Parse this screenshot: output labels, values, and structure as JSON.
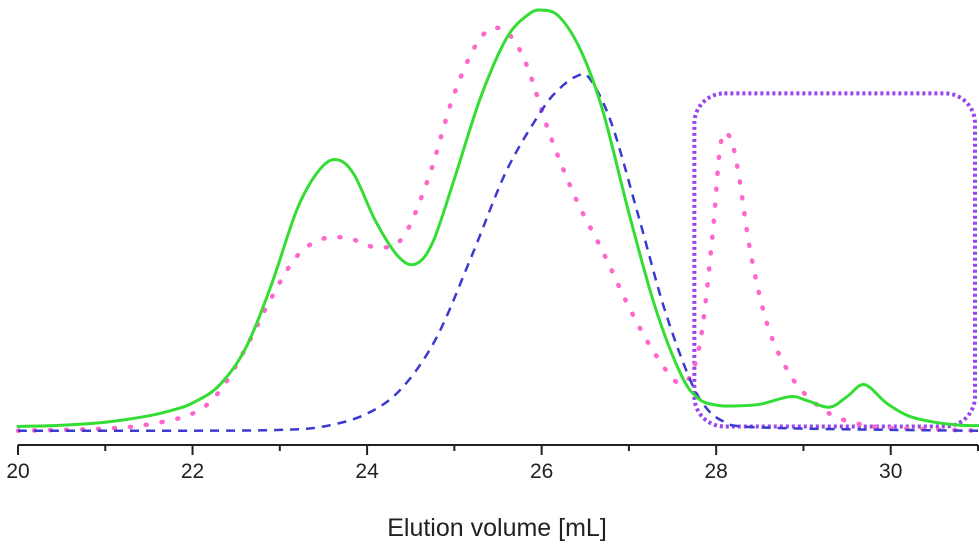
{
  "chart_data": {
    "type": "line",
    "title": "",
    "xlabel": "Elution volume [mL]",
    "ylabel": "",
    "xlim": [
      20,
      31
    ],
    "ylim": [
      0,
      1
    ],
    "x_ticks": [
      20,
      22,
      24,
      26,
      28,
      30
    ],
    "grid": false,
    "legend": "none",
    "series": [
      {
        "style": "solid",
        "color": "#33dd33",
        "x": [
          20,
          20.5,
          21,
          21.5,
          21.8,
          22,
          22.3,
          22.6,
          22.9,
          23.2,
          23.45,
          23.65,
          23.85,
          24.1,
          24.35,
          24.55,
          24.75,
          25,
          25.3,
          25.6,
          25.85,
          26,
          26.2,
          26.45,
          26.7,
          27,
          27.3,
          27.6,
          27.8,
          28.0,
          28.2,
          28.5,
          28.85,
          29.05,
          29.3,
          29.5,
          29.7,
          29.95,
          30.2,
          30.5,
          30.8,
          31
        ],
        "y": [
          0.02,
          0.023,
          0.03,
          0.045,
          0.06,
          0.075,
          0.115,
          0.2,
          0.35,
          0.53,
          0.62,
          0.645,
          0.61,
          0.5,
          0.42,
          0.4,
          0.45,
          0.6,
          0.79,
          0.93,
          0.985,
          0.995,
          0.98,
          0.9,
          0.76,
          0.52,
          0.3,
          0.14,
          0.085,
          0.07,
          0.068,
          0.072,
          0.09,
          0.08,
          0.065,
          0.09,
          0.118,
          0.075,
          0.045,
          0.03,
          0.023,
          0.022
        ]
      },
      {
        "style": "dashed",
        "color": "#3a3ad0",
        "x": [
          20,
          22,
          23,
          23.5,
          24,
          24.4,
          24.8,
          25.2,
          25.6,
          26,
          26.2,
          26.4,
          26.55,
          26.8,
          27.1,
          27.4,
          27.7,
          27.9,
          28.1,
          28.3,
          29,
          30,
          31
        ],
        "y": [
          0.01,
          0.01,
          0.012,
          0.02,
          0.05,
          0.11,
          0.23,
          0.42,
          0.62,
          0.76,
          0.81,
          0.84,
          0.835,
          0.73,
          0.52,
          0.3,
          0.13,
          0.06,
          0.03,
          0.02,
          0.015,
          0.012,
          0.01
        ]
      },
      {
        "style": "dotted",
        "color": "#ff66cc",
        "x": [
          20,
          21,
          21.5,
          22,
          22.3,
          22.6,
          22.9,
          23.2,
          23.5,
          23.8,
          24.1,
          24.4,
          24.7,
          25,
          25.3,
          25.55,
          25.8,
          26.1,
          26.4,
          26.7,
          27,
          27.3,
          27.6,
          27.8,
          27.95,
          28.05,
          28.15,
          28.25,
          28.4,
          28.6,
          28.85,
          29.1,
          29.4,
          29.8,
          30.2,
          31
        ],
        "y": [
          0.01,
          0.015,
          0.025,
          0.05,
          0.1,
          0.2,
          0.32,
          0.42,
          0.46,
          0.46,
          0.44,
          0.46,
          0.6,
          0.8,
          0.93,
          0.95,
          0.88,
          0.7,
          0.55,
          0.43,
          0.3,
          0.19,
          0.12,
          0.2,
          0.45,
          0.68,
          0.7,
          0.62,
          0.42,
          0.25,
          0.14,
          0.08,
          0.04,
          0.02,
          0.015,
          0.01
        ]
      }
    ],
    "annotations": [
      {
        "type": "rounded-rectangle",
        "style": "dotted",
        "color": "#9944ee",
        "x_range": [
          27.75,
          31
        ],
        "y_range": [
          0.02,
          0.8
        ]
      }
    ]
  }
}
